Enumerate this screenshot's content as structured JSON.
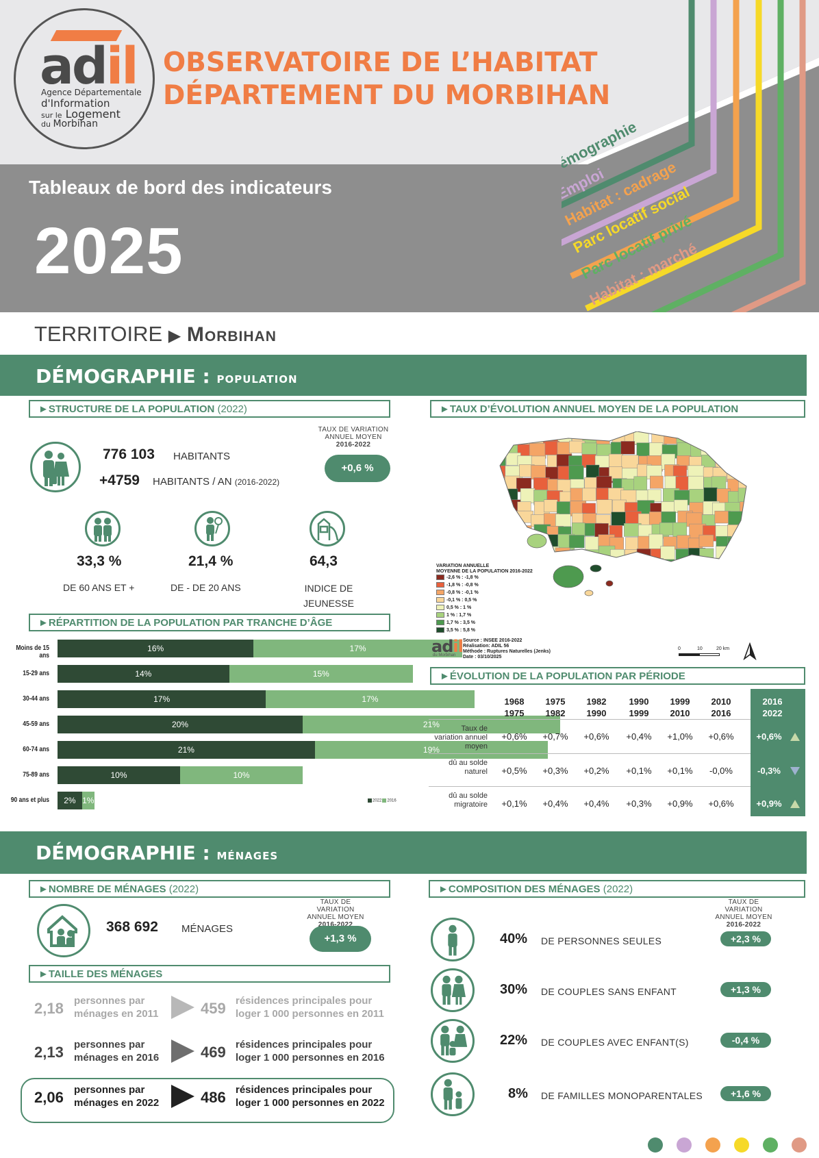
{
  "header": {
    "logo": {
      "word_main": "ad",
      "word_accent": "il",
      "line1": "Agence Départementale",
      "line2": "d'Information",
      "line3_a": "sur le",
      "line3_b": "Logement",
      "line4": "du Morbihan"
    },
    "title_line1": "OBSERVATOIRE DE L’HABITAT",
    "title_line2": "DÉPARTEMENT DU MORBIHAN",
    "dashboard_label": "Tableaux de bord des indicateurs",
    "year": "2025",
    "themes": [
      {
        "label": "Démographie",
        "color": "#4f8b6e"
      },
      {
        "label": "Emploi",
        "color": "#c9a6d4"
      },
      {
        "label": "Habitat : cadrage",
        "color": "#f4a24e"
      },
      {
        "label": "Parc locatif social",
        "color": "#f6d928"
      },
      {
        "label": "Parc locatif privé",
        "color": "#5fb063"
      },
      {
        "label": "Habitat : marché",
        "color": "#e09a85"
      }
    ]
  },
  "territory": {
    "label": "TERRITOIRE",
    "name": "Morbihan"
  },
  "section_population": {
    "title_main": "DÉMOGRAPHIE :",
    "title_small": "population",
    "structure": {
      "heading": "STRUCTURE DE LA POPULATION",
      "heading_year": "(2022)",
      "population": "776 103",
      "population_label": "HABITANTS",
      "growth": "+4759",
      "growth_label": "HABITANTS / AN",
      "growth_period": "(2016-2022)",
      "rate_caption_1": "TAUX DE VARIATION",
      "rate_caption_2": "ANNUEL MOYEN",
      "rate_caption_3": "2016-2022",
      "rate": "+0,6 %",
      "stats": [
        {
          "value": "33,3  %",
          "label": "DE 60 ANS ET +"
        },
        {
          "value": "21,4 %",
          "label": "DE - DE 20 ANS"
        },
        {
          "value": "64,3",
          "label": "INDICE DE JEUNESSE"
        }
      ]
    },
    "age_heading": "RÉPARTITION DE LA POPULATION PAR TRANCHE D’ÂGE",
    "map": {
      "heading": "TAUX D’ÉVOLUTION ANNUEL MOYEN DE LA POPULATION",
      "legend_title_1": "VARIATION ANNUELLE",
      "legend_title_2": "MOYENNE DE LA POPULATION 2016-2022",
      "legend": [
        {
          "label": "-2,6 % : -1,8 %",
          "color": "#8b2a1f"
        },
        {
          "label": "-1,8 % : -0,8 %",
          "color": "#e8603c"
        },
        {
          "label": "-0,8 % : -0,1 %",
          "color": "#f4a566"
        },
        {
          "label": "-0,1 % : 0,5 %",
          "color": "#f9d79a"
        },
        {
          "label": "0,5 % : 1 %",
          "color": "#eef2b8"
        },
        {
          "label": "1 % : 1,7 %",
          "color": "#a8d27e"
        },
        {
          "label": "1,7 % : 3,5 %",
          "color": "#4e9a4f"
        },
        {
          "label": "3,5 % : 5,8 %",
          "color": "#1f4d2c"
        }
      ],
      "source_1": "Source : INSEE 2016-2022",
      "source_2": "Réalisation: ADIL 56",
      "source_3": "Méthode : Ruptures Naturelles (Jenks)",
      "source_4": "Date : 03/10/2025",
      "scale_0": "0",
      "scale_10": "10",
      "scale_20": "20 km",
      "small_logo": "adil",
      "small_logo_sub": "du Morbihan"
    },
    "evolution": {
      "heading": "ÉVOLUTION DE LA POPULATION PAR PÉRIODE",
      "periods": [
        [
          "1968",
          "1975"
        ],
        [
          "1975",
          "1982"
        ],
        [
          "1982",
          "1990"
        ],
        [
          "1990",
          "1999"
        ],
        [
          "1999",
          "2010"
        ],
        [
          "2010",
          "2016"
        ],
        [
          "2016",
          "2022"
        ]
      ],
      "rows": [
        {
          "label": "Taux de variation annuel moyen",
          "values": [
            "+0,6%",
            "+0,7%",
            "+0,6%",
            "+0,4%",
            "+1,0%",
            "+0,6%",
            "+0,6%"
          ],
          "trend": "up"
        },
        {
          "label": "dû au solde naturel",
          "values": [
            "+0,5%",
            "+0,3%",
            "+0,2%",
            "+0,1%",
            "+0,1%",
            "-0,0%",
            "-0,3%"
          ],
          "trend": "down"
        },
        {
          "label": "dû au solde migratoire",
          "values": [
            "+0,1%",
            "+0,4%",
            "+0,4%",
            "+0,3%",
            "+0,9%",
            "+0,6%",
            "+0,9%"
          ],
          "trend": "up"
        }
      ]
    }
  },
  "chart_data": {
    "type": "bar",
    "title": "RÉPARTITION DE LA POPULATION PAR TRANCHE D’ÂGE",
    "categories": [
      "Moins de 15 ans",
      "15-29 ans",
      "30-44 ans",
      "45-59 ans",
      "60-74 ans",
      "75-89 ans",
      "90 ans et plus"
    ],
    "series": [
      {
        "name": "2022",
        "color": "#2f4a35",
        "values": [
          16,
          14,
          17,
          20,
          21,
          10,
          2
        ],
        "labels": [
          "16%",
          "14%",
          "17%",
          "20%",
          "21%",
          "10%",
          "2%"
        ]
      },
      {
        "name": "2016",
        "color": "#80b77d",
        "values": [
          17,
          15,
          17,
          21,
          19,
          10,
          1
        ],
        "labels": [
          "17%",
          "15%",
          "17%",
          "21%",
          "19%",
          "10%",
          "1%"
        ]
      }
    ],
    "legend_position": "bottom-right"
  },
  "section_menages": {
    "title_main": "DÉMOGRAPHIE :",
    "title_small": "ménages",
    "count": {
      "heading": "NOMBRE DE MÉNAGES",
      "heading_year": "(2022)",
      "value": "368 692",
      "label": "MÉNAGES",
      "rate_caption_1": "TAUX DE VARIATION",
      "rate_caption_2": "ANNUEL MOYEN",
      "rate_caption_3": "2016-2022",
      "rate": "+1,3 %"
    },
    "size": {
      "heading": "TAILLE DES MÉNAGES",
      "rows": [
        {
          "ppm": "2,18",
          "ppm_label_1": "personnes par",
          "ppm_label_2": "ménages en 2011",
          "rp": "459",
          "rp_label_1": "résidences principales pour",
          "rp_label_2": "loger 1 000 personnes en 2011",
          "shade": "#b8b8b8"
        },
        {
          "ppm": "2,13",
          "ppm_label_1": "personnes par",
          "ppm_label_2": "ménages en 2016",
          "rp": "469",
          "rp_label_1": "résidences principales pour",
          "rp_label_2": "loger 1 000 personnes en 2016",
          "shade": "#6e6e6e"
        },
        {
          "ppm": "2,06",
          "ppm_label_1": "personnes par",
          "ppm_label_2": "ménages en 2022",
          "rp": "486",
          "rp_label_1": "résidences principales pour",
          "rp_label_2": "loger 1 000 personnes en 2022",
          "shade": "#222222"
        }
      ]
    },
    "composition": {
      "heading": "COMPOSITION DES MÉNAGES",
      "heading_year": "(2022)",
      "rate_caption_1": "TAUX DE VARIATION",
      "rate_caption_2": "ANNUEL MOYEN",
      "rate_caption_3": "2016-2022",
      "rows": [
        {
          "pct": "40%",
          "label": "DE PERSONNES SEULES",
          "rate": "+2,3 %"
        },
        {
          "pct": "30%",
          "label": "DE COUPLES SANS ENFANT",
          "rate": "+1,3 %"
        },
        {
          "pct": "22%",
          "label": "DE COUPLES AVEC ENFANT(S)",
          "rate": "-0,4 %"
        },
        {
          "pct": "8%",
          "label": "DE FAMILLES MONOPARENTALES",
          "rate": "+1,6 %"
        }
      ]
    }
  },
  "footer_dots": [
    "#4f8b6e",
    "#c9a6d4",
    "#f4a24e",
    "#f6d928",
    "#5fb063",
    "#e09a85"
  ]
}
